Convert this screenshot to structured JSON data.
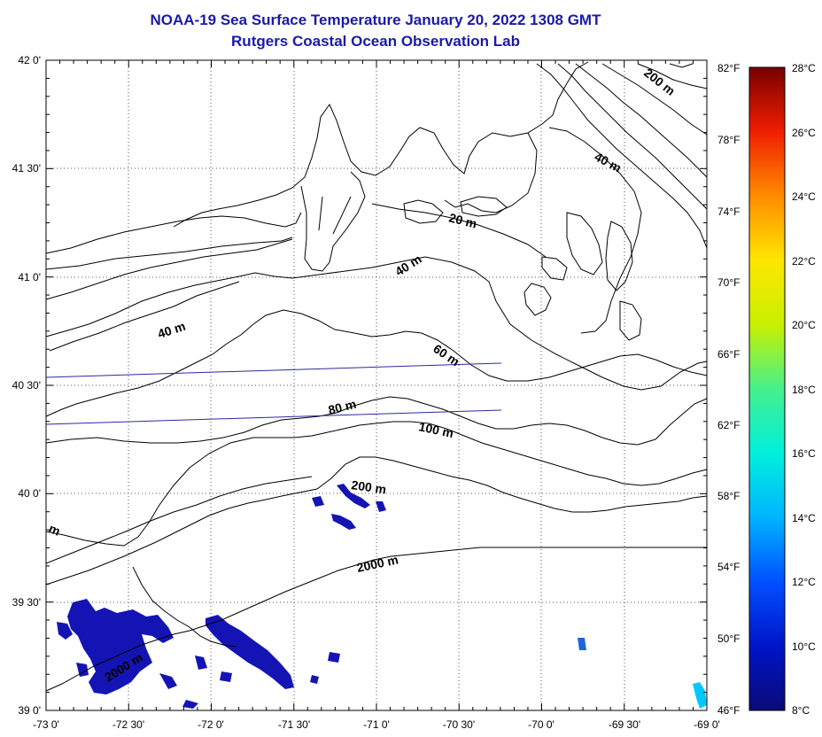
{
  "header": {
    "title": "NOAA-19 Sea Surface Temperature January 20, 2022 1308 GMT",
    "subtitle": "Rutgers Coastal Ocean Observation Lab"
  },
  "map": {
    "lon_labels": [
      "-73 0'",
      "-72 30'",
      "-72 0'",
      "-71 30'",
      "-71 0'",
      "-70 30'",
      "-70 0'",
      "-69 30'",
      "-69 0'"
    ],
    "lat_labels": [
      "42 0'",
      "41 30'",
      "41 0'",
      "40 30'",
      "40 0'",
      "39 30'",
      "39 0'"
    ],
    "fahrenheit_labels": [
      "82°F",
      "78°F",
      "74°F",
      "70°F",
      "66°F",
      "62°F",
      "58°F",
      "54°F",
      "50°F",
      "46°F"
    ],
    "depth_labels": {
      "d200_ne": "200 m",
      "d40_ne": "40 m",
      "d20": "20 m",
      "d40_mid": "40 m",
      "d40_west": "40 m",
      "d60": "60 m",
      "d80": "80 m",
      "d100": "100 m",
      "d200_mid": "200 m",
      "d2000": "2000 m",
      "d2000_sw": "2000 m",
      "edge_m": "m"
    },
    "colors": {
      "land_outline": "#000000",
      "contour": "#000000",
      "scan_line": "#2a2aa0",
      "sst_cold": "#1414b4",
      "sst_mid": "#00c8ff"
    }
  },
  "colorbar": {
    "celsius_labels": [
      "28°C",
      "26°C",
      "24°C",
      "22°C",
      "20°C",
      "18°C",
      "16°C",
      "14°C",
      "12°C",
      "10°C",
      "8°C"
    ]
  }
}
